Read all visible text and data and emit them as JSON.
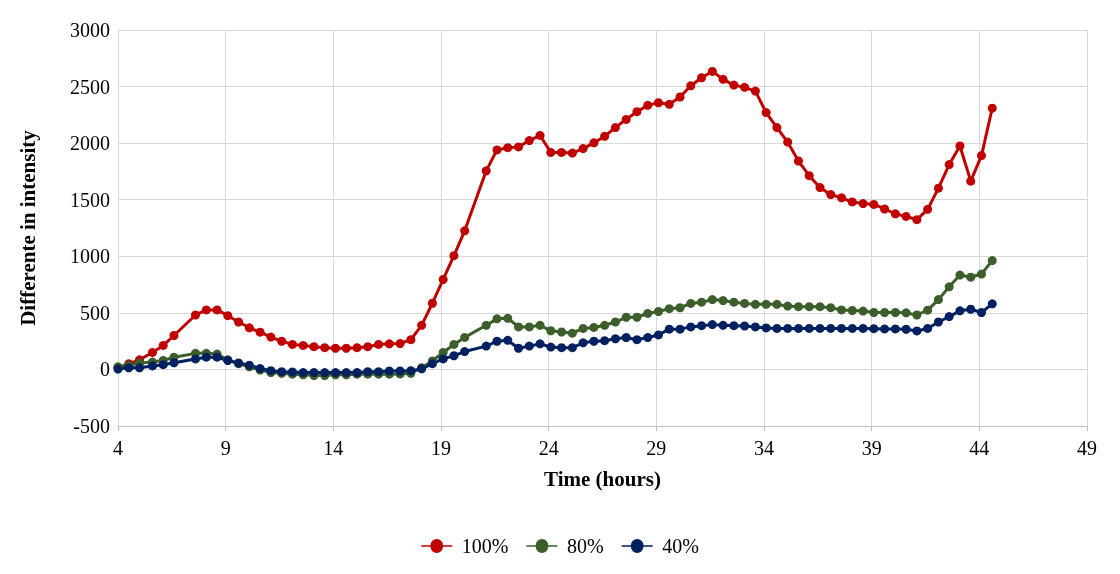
{
  "chart_data": {
    "type": "line",
    "xlabel": "Time (hours)",
    "ylabel": "Differente in intensity",
    "x": [
      4.0,
      4.5,
      5.0,
      5.6,
      6.1,
      6.6,
      7.6,
      8.1,
      8.6,
      9.1,
      9.6,
      10.1,
      10.6,
      11.1,
      11.6,
      12.1,
      12.6,
      13.1,
      13.6,
      14.1,
      14.6,
      15.1,
      15.6,
      16.1,
      16.6,
      17.1,
      17.6,
      18.1,
      18.6,
      19.1,
      19.6,
      20.1,
      21.1,
      21.6,
      22.1,
      22.6,
      23.1,
      23.6,
      24.1,
      24.6,
      25.1,
      25.6,
      26.1,
      26.6,
      27.1,
      27.6,
      28.1,
      28.6,
      29.1,
      29.6,
      30.1,
      30.6,
      31.1,
      31.6,
      32.1,
      32.6,
      33.1,
      33.6,
      34.1,
      34.6,
      35.1,
      35.6,
      36.1,
      36.6,
      37.1,
      37.6,
      38.1,
      38.6,
      39.1,
      39.6,
      40.1,
      40.6,
      41.1,
      41.6,
      42.1,
      42.6,
      43.1,
      43.6,
      44.1,
      44.6
    ],
    "series": [
      {
        "name": "100%",
        "color": "#c00000",
        "values": [
          14,
          51,
          85,
          150,
          212,
          300,
          481,
          526,
          526,
          475,
          419,
          368,
          329,
          286,
          249,
          221,
          212,
          201,
          192,
          187,
          187,
          192,
          201,
          221,
          226,
          229,
          263,
          390,
          585,
          795,
          1005,
          1225,
          1755,
          1940,
          1960,
          1967,
          2023,
          2068,
          1918,
          1918,
          1912,
          1952,
          2003,
          2060,
          2138,
          2210,
          2278,
          2334,
          2357,
          2343,
          2408,
          2507,
          2578,
          2634,
          2564,
          2513,
          2493,
          2460,
          2270,
          2138,
          2009,
          1842,
          1712,
          1607,
          1545,
          1517,
          1480,
          1466,
          1458,
          1418,
          1375,
          1352,
          1324,
          1415,
          1602,
          1811,
          1975,
          1664,
          1890,
          2309
        ]
      },
      {
        "name": "80%",
        "color": "#3b5e2b",
        "values": [
          23,
          37,
          57,
          65,
          79,
          108,
          142,
          142,
          136,
          85,
          51,
          23,
          -6,
          -28,
          -34,
          -42,
          -48,
          -54,
          -54,
          -48,
          -48,
          -42,
          -42,
          -42,
          -42,
          -40,
          -34,
          15,
          75,
          150,
          221,
          283,
          390,
          447,
          452,
          376,
          376,
          390,
          342,
          331,
          320,
          362,
          371,
          390,
          419,
          461,
          461,
          495,
          512,
          537,
          545,
          583,
          594,
          617,
          609,
          594,
          583,
          575,
          575,
          575,
          560,
          555,
          555,
          555,
          546,
          526,
          521,
          516,
          503,
          503,
          503,
          500,
          481,
          524,
          617,
          730,
          834,
          815,
          843,
          962
        ]
      },
      {
        "name": "40%",
        "color": "#002060",
        "values": [
          3,
          14,
          14,
          31,
          42,
          59,
          93,
          108,
          108,
          79,
          57,
          37,
          8,
          -11,
          -20,
          -22,
          -28,
          -28,
          -28,
          -28,
          -28,
          -28,
          -20,
          -20,
          -14,
          -14,
          -11,
          5,
          51,
          93,
          121,
          158,
          206,
          249,
          257,
          187,
          206,
          226,
          198,
          192,
          192,
          235,
          249,
          254,
          271,
          282,
          263,
          282,
          305,
          356,
          356,
          376,
          387,
          396,
          390,
          387,
          384,
          376,
          367,
          362,
          362,
          362,
          362,
          362,
          362,
          362,
          362,
          362,
          360,
          358,
          358,
          355,
          340,
          362,
          419,
          467,
          518,
          532,
          503,
          580
        ]
      }
    ],
    "xlim": [
      4,
      49
    ],
    "xticks": [
      4,
      9,
      14,
      19,
      24,
      29,
      34,
      39,
      44,
      49
    ],
    "ylim": [
      -500,
      3000
    ],
    "yticks": [
      -500,
      0,
      500,
      1000,
      1500,
      2000,
      2500,
      3000
    ],
    "grid": true,
    "legend": "bottom",
    "marker": "circle",
    "line_style": "solid"
  }
}
